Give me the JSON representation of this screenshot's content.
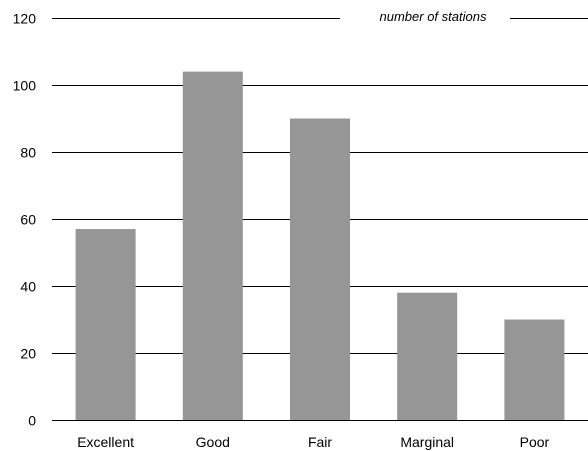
{
  "chart_data": {
    "type": "bar",
    "categories": [
      "Excellent",
      "Good",
      "Fair",
      "Marginal",
      "Poor"
    ],
    "values": [
      57,
      104,
      90,
      38,
      30
    ],
    "ylabel": "number of stations",
    "ylim": [
      0,
      120
    ],
    "yticks": [
      0,
      20,
      40,
      60,
      80,
      100,
      120
    ],
    "grid": true,
    "bar_color": "#969696",
    "grid_color": "#000000"
  }
}
